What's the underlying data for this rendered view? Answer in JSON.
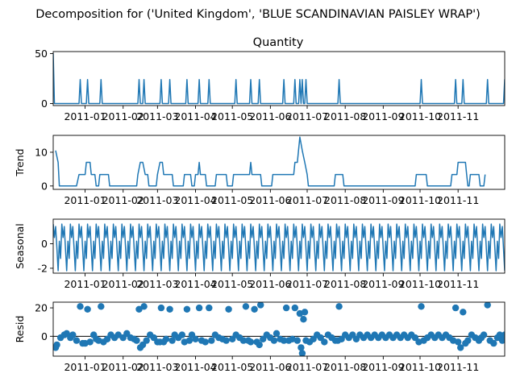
{
  "chart_data": {
    "type": "line",
    "title": "Decomposition for ('United Kingdom', 'BLUE SCANDINAVIAN PAISLEY WRAP')",
    "subtitle": "Quantity",
    "x_range": [
      "2010-12-06",
      "2011-12-09"
    ],
    "x_ticks": [
      "2011-01",
      "2011-02",
      "2011-03",
      "2011-04",
      "2011-05",
      "2011-06",
      "2011-07",
      "2011-08",
      "2011-09",
      "2011-10",
      "2011-11"
    ],
    "color": "#1f77b4",
    "panels": [
      {
        "name": "observed",
        "ylabel": "",
        "kind": "line",
        "ylim": [
          -2,
          52
        ],
        "yticks": [
          0,
          50
        ],
        "spikes": [
          {
            "date": "2010-12-06",
            "value": 50
          },
          {
            "date": "2010-12-28",
            "value": 24
          },
          {
            "date": "2011-01-03",
            "value": 24
          },
          {
            "date": "2011-01-14",
            "value": 24
          },
          {
            "date": "2011-02-14",
            "value": 24
          },
          {
            "date": "2011-02-18",
            "value": 24
          },
          {
            "date": "2011-03-04",
            "value": 24
          },
          {
            "date": "2011-03-11",
            "value": 24
          },
          {
            "date": "2011-03-25",
            "value": 24
          },
          {
            "date": "2011-04-04",
            "value": 24
          },
          {
            "date": "2011-04-12",
            "value": 24
          },
          {
            "date": "2011-05-04",
            "value": 24
          },
          {
            "date": "2011-05-16",
            "value": 24
          },
          {
            "date": "2011-05-23",
            "value": 24
          },
          {
            "date": "2011-06-12",
            "value": 24
          },
          {
            "date": "2011-06-21",
            "value": 24
          },
          {
            "date": "2011-06-25",
            "value": 24
          },
          {
            "date": "2011-06-27",
            "value": 24
          },
          {
            "date": "2011-06-30",
            "value": 24
          },
          {
            "date": "2011-07-27",
            "value": 24
          },
          {
            "date": "2011-10-02",
            "value": 24
          },
          {
            "date": "2011-10-30",
            "value": 24
          },
          {
            "date": "2011-11-05",
            "value": 24
          },
          {
            "date": "2011-11-25",
            "value": 24
          },
          {
            "date": "2011-12-09",
            "value": 24
          }
        ]
      },
      {
        "name": "trend",
        "ylabel": "Trend",
        "kind": "line",
        "ylim": [
          -1,
          15
        ],
        "yticks": [
          0,
          10
        ],
        "points": [
          [
            "2010-12-08",
            10.5
          ],
          [
            "2010-12-10",
            7
          ],
          [
            "2010-12-11",
            0
          ],
          [
            "2010-12-25",
            0
          ],
          [
            "2010-12-27",
            3.4
          ],
          [
            "2011-01-01",
            3.4
          ],
          [
            "2011-01-02",
            7
          ],
          [
            "2011-01-05",
            7
          ],
          [
            "2011-01-06",
            3.4
          ],
          [
            "2011-01-09",
            3.4
          ],
          [
            "2011-01-10",
            0
          ],
          [
            "2011-01-12",
            0
          ],
          [
            "2011-01-13",
            3.4
          ],
          [
            "2011-01-20",
            3.4
          ],
          [
            "2011-01-21",
            0
          ],
          [
            "2011-02-12",
            0
          ],
          [
            "2011-02-13",
            3.4
          ],
          [
            "2011-02-15",
            7
          ],
          [
            "2011-02-17",
            7
          ],
          [
            "2011-02-19",
            3.4
          ],
          [
            "2011-02-21",
            3.4
          ],
          [
            "2011-02-22",
            0
          ],
          [
            "2011-02-28",
            0
          ],
          [
            "2011-03-01",
            3.4
          ],
          [
            "2011-03-03",
            7
          ],
          [
            "2011-03-05",
            7
          ],
          [
            "2011-03-06",
            3.4
          ],
          [
            "2011-03-13",
            3.4
          ],
          [
            "2011-03-14",
            0
          ],
          [
            "2011-03-22",
            0
          ],
          [
            "2011-03-23",
            3.4
          ],
          [
            "2011-03-28",
            3.4
          ],
          [
            "2011-03-29",
            0
          ],
          [
            "2011-03-31",
            0
          ],
          [
            "2011-04-01",
            3.4
          ],
          [
            "2011-04-03",
            3.4
          ],
          [
            "2011-04-04",
            7
          ],
          [
            "2011-04-05",
            3.4
          ],
          [
            "2011-04-09",
            3.4
          ],
          [
            "2011-04-10",
            0
          ],
          [
            "2011-04-17",
            0
          ],
          [
            "2011-04-18",
            3.4
          ],
          [
            "2011-04-26",
            3.4
          ],
          [
            "2011-04-27",
            0
          ],
          [
            "2011-05-01",
            0
          ],
          [
            "2011-05-02",
            3.4
          ],
          [
            "2011-05-12",
            3.4
          ],
          [
            "2011-05-13",
            3.4
          ],
          [
            "2011-05-15",
            3.4
          ],
          [
            "2011-05-16",
            7
          ],
          [
            "2011-05-17",
            3.4
          ],
          [
            "2011-05-24",
            3.4
          ],
          [
            "2011-05-25",
            0
          ],
          [
            "2011-06-02",
            0
          ],
          [
            "2011-06-03",
            3.4
          ],
          [
            "2011-06-20",
            3.4
          ],
          [
            "2011-06-21",
            7
          ],
          [
            "2011-06-23",
            7
          ],
          [
            "2011-06-25",
            14.5
          ],
          [
            "2011-06-27",
            10.5
          ],
          [
            "2011-06-29",
            7
          ],
          [
            "2011-07-01",
            3.4
          ],
          [
            "2011-07-02",
            0
          ],
          [
            "2011-07-23",
            0
          ],
          [
            "2011-07-24",
            3.4
          ],
          [
            "2011-07-30",
            3.4
          ],
          [
            "2011-07-31",
            0
          ],
          [
            "2011-09-27",
            0
          ],
          [
            "2011-09-28",
            3.4
          ],
          [
            "2011-10-06",
            3.4
          ],
          [
            "2011-10-07",
            0
          ],
          [
            "2011-10-26",
            0
          ],
          [
            "2011-10-27",
            3.4
          ],
          [
            "2011-10-31",
            3.4
          ],
          [
            "2011-11-01",
            7
          ],
          [
            "2011-11-07",
            7
          ],
          [
            "2011-11-08",
            3.4
          ],
          [
            "2011-11-09",
            0
          ],
          [
            "2011-11-10",
            0
          ],
          [
            "2011-11-11",
            3.4
          ],
          [
            "2011-11-18",
            3.4
          ],
          [
            "2011-11-19",
            0
          ],
          [
            "2011-11-22",
            0
          ],
          [
            "2011-11-23",
            3.4
          ]
        ]
      },
      {
        "name": "seasonal",
        "ylabel": "Seasonal",
        "kind": "line",
        "ylim": [
          -2.4,
          2.0
        ],
        "yticks": [
          -2,
          0
        ],
        "period_days": 7,
        "cycle": [
          1.6,
          0.5,
          1.4,
          -0.4,
          -2.2,
          0.2,
          -1.2
        ],
        "start": "2010-12-06",
        "end": "2011-12-09"
      },
      {
        "name": "resid",
        "ylabel": "Resid",
        "kind": "scatter",
        "ylim": [
          -14,
          24
        ],
        "yticks": [
          0,
          20
        ],
        "baseline": 0,
        "points": [
          [
            "2010-12-08",
            -8
          ],
          [
            "2010-12-09",
            -6
          ],
          [
            "2010-12-12",
            -1
          ],
          [
            "2010-12-15",
            1
          ],
          [
            "2010-12-17",
            2
          ],
          [
            "2010-12-20",
            -1
          ],
          [
            "2010-12-22",
            1
          ],
          [
            "2010-12-25",
            -3
          ],
          [
            "2010-12-28",
            21
          ],
          [
            "2010-12-30",
            -5
          ],
          [
            "2011-01-01",
            -5
          ],
          [
            "2011-01-03",
            19
          ],
          [
            "2011-01-05",
            -4
          ],
          [
            "2011-01-08",
            1
          ],
          [
            "2011-01-10",
            -2
          ],
          [
            "2011-01-12",
            -3
          ],
          [
            "2011-01-14",
            21
          ],
          [
            "2011-01-16",
            -4
          ],
          [
            "2011-01-19",
            -2
          ],
          [
            "2011-01-22",
            1
          ],
          [
            "2011-01-25",
            -1
          ],
          [
            "2011-01-28",
            1
          ],
          [
            "2011-02-01",
            -1
          ],
          [
            "2011-02-04",
            2
          ],
          [
            "2011-02-07",
            -1
          ],
          [
            "2011-02-10",
            -2
          ],
          [
            "2011-02-12",
            -3
          ],
          [
            "2011-02-14",
            19
          ],
          [
            "2011-02-15",
            -8
          ],
          [
            "2011-02-17",
            -6
          ],
          [
            "2011-02-18",
            21
          ],
          [
            "2011-02-20",
            -3
          ],
          [
            "2011-02-23",
            1
          ],
          [
            "2011-02-26",
            -1
          ],
          [
            "2011-03-01",
            -4
          ],
          [
            "2011-03-03",
            -4
          ],
          [
            "2011-03-04",
            20
          ],
          [
            "2011-03-06",
            -4
          ],
          [
            "2011-03-08",
            -2
          ],
          [
            "2011-03-11",
            19
          ],
          [
            "2011-03-13",
            -3
          ],
          [
            "2011-03-15",
            1
          ],
          [
            "2011-03-18",
            -1
          ],
          [
            "2011-03-21",
            1
          ],
          [
            "2011-03-23",
            -4
          ],
          [
            "2011-03-25",
            19
          ],
          [
            "2011-03-27",
            -3
          ],
          [
            "2011-03-29",
            1
          ],
          [
            "2011-04-01",
            -2
          ],
          [
            "2011-04-04",
            20
          ],
          [
            "2011-04-06",
            -3
          ],
          [
            "2011-04-09",
            -4
          ],
          [
            "2011-04-12",
            20
          ],
          [
            "2011-04-14",
            -3
          ],
          [
            "2011-04-17",
            1
          ],
          [
            "2011-04-20",
            -1
          ],
          [
            "2011-04-23",
            -2
          ],
          [
            "2011-04-26",
            -3
          ],
          [
            "2011-04-28",
            19
          ],
          [
            "2011-05-01",
            -2
          ],
          [
            "2011-05-04",
            1
          ],
          [
            "2011-05-07",
            -1
          ],
          [
            "2011-05-10",
            -3
          ],
          [
            "2011-05-12",
            21
          ],
          [
            "2011-05-14",
            -3
          ],
          [
            "2011-05-16",
            -4
          ],
          [
            "2011-05-19",
            19
          ],
          [
            "2011-05-21",
            -4
          ],
          [
            "2011-05-23",
            -6
          ],
          [
            "2011-05-24",
            22
          ],
          [
            "2011-05-26",
            -2
          ],
          [
            "2011-05-29",
            1
          ],
          [
            "2011-06-01",
            -1
          ],
          [
            "2011-06-04",
            -3
          ],
          [
            "2011-06-06",
            2
          ],
          [
            "2011-06-09",
            -2
          ],
          [
            "2011-06-12",
            -3
          ],
          [
            "2011-06-14",
            20
          ],
          [
            "2011-06-16",
            -3
          ],
          [
            "2011-06-19",
            -2
          ],
          [
            "2011-06-21",
            20
          ],
          [
            "2011-06-23",
            -3
          ],
          [
            "2011-06-25",
            16
          ],
          [
            "2011-06-26",
            -8
          ],
          [
            "2011-06-27",
            -12
          ],
          [
            "2011-06-28",
            12
          ],
          [
            "2011-06-29",
            17
          ],
          [
            "2011-06-30",
            -3
          ],
          [
            "2011-07-03",
            -4
          ],
          [
            "2011-07-06",
            -2
          ],
          [
            "2011-07-09",
            1
          ],
          [
            "2011-07-12",
            -1
          ],
          [
            "2011-07-15",
            -4
          ],
          [
            "2011-07-18",
            1
          ],
          [
            "2011-07-21",
            -1
          ],
          [
            "2011-07-24",
            -3
          ],
          [
            "2011-07-26",
            -3
          ],
          [
            "2011-07-27",
            21
          ],
          [
            "2011-07-29",
            -2
          ],
          [
            "2011-08-01",
            1
          ],
          [
            "2011-08-04",
            -1
          ],
          [
            "2011-08-07",
            1
          ],
          [
            "2011-08-10",
            -2
          ],
          [
            "2011-08-13",
            1
          ],
          [
            "2011-08-16",
            -1
          ],
          [
            "2011-08-19",
            1
          ],
          [
            "2011-08-22",
            -1
          ],
          [
            "2011-08-25",
            1
          ],
          [
            "2011-08-28",
            -1
          ],
          [
            "2011-08-31",
            1
          ],
          [
            "2011-09-03",
            -1
          ],
          [
            "2011-09-06",
            1
          ],
          [
            "2011-09-09",
            -1
          ],
          [
            "2011-09-12",
            1
          ],
          [
            "2011-09-15",
            -1
          ],
          [
            "2011-09-18",
            1
          ],
          [
            "2011-09-21",
            -1
          ],
          [
            "2011-09-24",
            1
          ],
          [
            "2011-09-27",
            -1
          ],
          [
            "2011-09-30",
            -4
          ],
          [
            "2011-10-02",
            21
          ],
          [
            "2011-10-04",
            -3
          ],
          [
            "2011-10-07",
            -1
          ],
          [
            "2011-10-10",
            1
          ],
          [
            "2011-10-13",
            -1
          ],
          [
            "2011-10-16",
            1
          ],
          [
            "2011-10-19",
            -1
          ],
          [
            "2011-10-22",
            1
          ],
          [
            "2011-10-25",
            -1
          ],
          [
            "2011-10-28",
            -3
          ],
          [
            "2011-10-30",
            20
          ],
          [
            "2011-11-01",
            -4
          ],
          [
            "2011-11-03",
            -8
          ],
          [
            "2011-11-05",
            17
          ],
          [
            "2011-11-07",
            -5
          ],
          [
            "2011-11-09",
            -3
          ],
          [
            "2011-11-12",
            1
          ],
          [
            "2011-11-15",
            -1
          ],
          [
            "2011-11-18",
            -3
          ],
          [
            "2011-11-20",
            -1
          ],
          [
            "2011-11-22",
            1
          ],
          [
            "2011-11-25",
            22
          ],
          [
            "2011-11-27",
            -3
          ],
          [
            "2011-11-30",
            -5
          ],
          [
            "2011-12-03",
            -1
          ],
          [
            "2011-12-05",
            1
          ],
          [
            "2011-12-07",
            -3
          ],
          [
            "2011-12-09",
            1
          ]
        ]
      }
    ]
  }
}
